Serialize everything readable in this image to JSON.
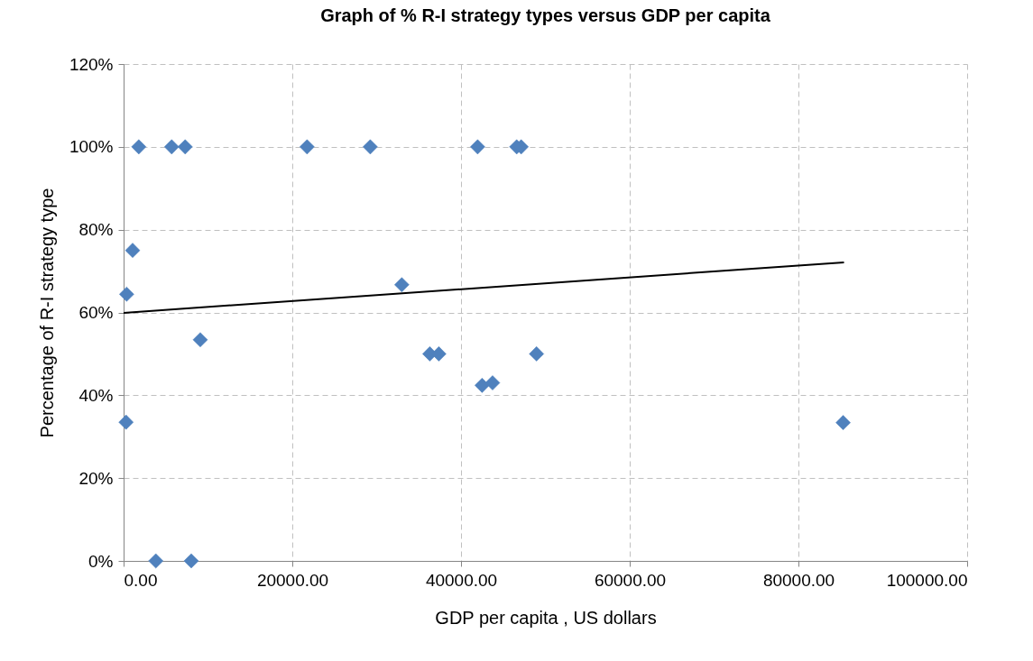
{
  "chart_data": {
    "type": "scatter",
    "title": "Graph of % R-I strategy types versus GDP per capita",
    "xlabel": "GDP per capita , US dollars",
    "ylabel": "Percentage of R-I strategy type",
    "series": [
      {
        "type": "scatter",
        "color": "#4f81bd",
        "marker": "diamond",
        "x": [
          1800,
          5700,
          7300,
          21750,
          29240,
          41970,
          46600,
          47130,
          1070,
          360,
          32980,
          9090,
          36300,
          37370,
          48950,
          42500,
          43740,
          290,
          3820,
          8020,
          85300
        ],
        "values": [
          100,
          100,
          100,
          100,
          100,
          100,
          100,
          100,
          75,
          64.4,
          66.7,
          53.4,
          50,
          50,
          50,
          42.4,
          43,
          33.5,
          0,
          0,
          33.4
        ]
      },
      {
        "type": "line",
        "color": "#000000",
        "line_style": "solid",
        "x": [
          0,
          85400
        ],
        "values": [
          59.9,
          72.1
        ]
      }
    ],
    "xlim": [
      0,
      100000
    ],
    "xticks": [
      {
        "value": 0,
        "label": "0.00"
      },
      {
        "value": 20000,
        "label": "20000.00"
      },
      {
        "value": 40000,
        "label": "40000.00"
      },
      {
        "value": 60000,
        "label": "60000.00"
      },
      {
        "value": 80000,
        "label": "80000.00"
      },
      {
        "value": 100000,
        "label": "100000.00"
      }
    ],
    "ylim": [
      0,
      120
    ],
    "yticks": [
      {
        "value": 0,
        "label": "0%"
      },
      {
        "value": 20,
        "label": "20%"
      },
      {
        "value": 40,
        "label": "40%"
      },
      {
        "value": 60,
        "label": "60%"
      },
      {
        "value": 80,
        "label": "80%"
      },
      {
        "value": 100,
        "label": "100%"
      },
      {
        "value": 120,
        "label": "120%"
      }
    ],
    "grid": true
  }
}
